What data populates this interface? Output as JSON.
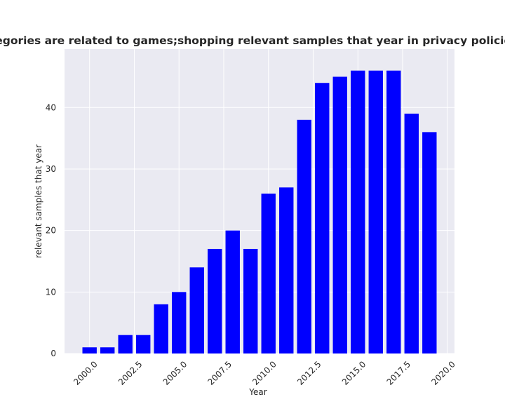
{
  "chart_data": {
    "type": "bar",
    "title": "When categories are related to games;shopping relevant samples that year in privacy policies by year",
    "xlabel": "Year",
    "ylabel": "relevant samples that year",
    "x": [
      2000,
      2001,
      2002,
      2003,
      2004,
      2005,
      2006,
      2007,
      2008,
      2009,
      2010,
      2011,
      2012,
      2013,
      2014,
      2015,
      2016,
      2017,
      2018,
      2019
    ],
    "values": [
      1,
      1,
      3,
      3,
      8,
      10,
      14,
      17,
      20,
      17,
      26,
      27,
      38,
      44,
      45,
      46,
      46,
      46,
      39,
      36
    ],
    "xlim": [
      1998.6,
      2020.4
    ],
    "ylim": [
      0,
      49.5
    ],
    "xticks": [
      "2000.0",
      "2002.5",
      "2005.0",
      "2007.5",
      "2010.0",
      "2012.5",
      "2015.0",
      "2017.5",
      "2020.0"
    ],
    "xtick_values": [
      2000,
      2002.5,
      2005,
      2007.5,
      2010,
      2012.5,
      2015,
      2017.5,
      2020
    ],
    "yticks": [
      "0",
      "10",
      "20",
      "30",
      "40"
    ],
    "ytick_values": [
      0,
      10,
      20,
      30,
      40
    ],
    "bar_color": "#0000ff",
    "background_color": "#eaeaf2",
    "grid": true,
    "legend": "none"
  }
}
